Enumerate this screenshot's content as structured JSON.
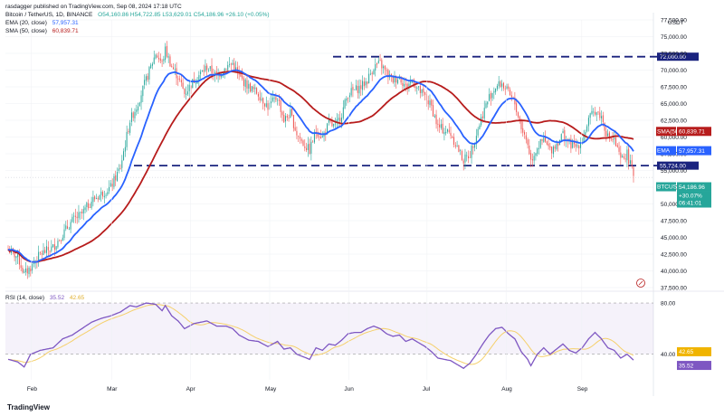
{
  "header": {
    "publisher": "rasdagger published on TradingView.com, Sep 08, 2024 17:18 UTC",
    "symbol": "Bitcoin / TetherUS, 1D, BINANCE",
    "ohlc": "O54,160.86 H54,722.85 L53,629.01 C54,186.96 +26.10 (+0.05%)",
    "ema_label": "EMA (20, close)",
    "ema_value": "57,957.31",
    "sma_label": "SMA (50, close)",
    "sma_value": "60,839.71",
    "currency": "USDT"
  },
  "rsi_header": {
    "label": "RSI (14, close)",
    "value1": "35.52",
    "value2": "42.65"
  },
  "brand": "TradingView",
  "colors": {
    "up": "#26a69a",
    "down": "#ef5350",
    "ema": "#2962ff",
    "sma": "#b71c1c",
    "rsi": "#7e57c2",
    "rsi_ma": "#f5d06b",
    "level_line": "#1a237e"
  },
  "chart_data": {
    "type": "candlestick",
    "y_axis": {
      "min": 37500,
      "max": 77500,
      "ticks": [
        "37,500.00",
        "40,000.00",
        "42,500.00",
        "45,000.00",
        "47,500.00",
        "50,000.00",
        "52,500.00",
        "55,000.00",
        "57,500.00",
        "60,000.00",
        "62,500.00",
        "65,000.00",
        "67,500.00",
        "70,000.00",
        "72,500.00",
        "75,000.00",
        "77,500.00"
      ]
    },
    "x_axis": {
      "month_labels": [
        "Feb",
        "Mar",
        "Apr",
        "May",
        "Jun",
        "Jul",
        "Aug",
        "Sep"
      ]
    },
    "levels": [
      {
        "label": "72,000.00",
        "value": 72000
      },
      {
        "label": "55,724.00",
        "value": 55724
      }
    ],
    "price_tags": [
      {
        "label": "SMA(50)",
        "value_text": "60,839.71",
        "value": 60839.71
      },
      {
        "label": "EMA",
        "value_text": "57,957.31",
        "value": 57957.31
      },
      {
        "label": "BTCUSDT",
        "value_text": "54,186.96",
        "value": 54186.96,
        "extra1": "+30.07%",
        "extra2": "06:41:01"
      }
    ],
    "price_keypoints": [
      [
        0,
        43200
      ],
      [
        6,
        42000
      ],
      [
        10,
        39500
      ],
      [
        14,
        40500
      ],
      [
        20,
        42500
      ],
      [
        28,
        43500
      ],
      [
        34,
        45500
      ],
      [
        40,
        47500
      ],
      [
        46,
        48500
      ],
      [
        52,
        50500
      ],
      [
        58,
        51500
      ],
      [
        64,
        52500
      ],
      [
        70,
        55500
      ],
      [
        76,
        62500
      ],
      [
        80,
        64500
      ],
      [
        86,
        68500
      ],
      [
        92,
        72500
      ],
      [
        96,
        71000
      ],
      [
        98,
        73000
      ],
      [
        102,
        70500
      ],
      [
        106,
        69000
      ],
      [
        110,
        66500
      ],
      [
        116,
        68500
      ],
      [
        124,
        70500
      ],
      [
        130,
        69000
      ],
      [
        136,
        70500
      ],
      [
        140,
        71000
      ],
      [
        144,
        69000
      ],
      [
        150,
        67500
      ],
      [
        156,
        66500
      ],
      [
        162,
        64500
      ],
      [
        168,
        66000
      ],
      [
        172,
        62500
      ],
      [
        176,
        63500
      ],
      [
        180,
        60500
      ],
      [
        184,
        59000
      ],
      [
        188,
        58000
      ],
      [
        192,
        61000
      ],
      [
        196,
        60000
      ],
      [
        200,
        62000
      ],
      [
        204,
        61500
      ],
      [
        208,
        63500
      ],
      [
        212,
        66500
      ],
      [
        216,
        67000
      ],
      [
        220,
        67500
      ],
      [
        224,
        68500
      ],
      [
        228,
        70500
      ],
      [
        232,
        71000
      ],
      [
        236,
        69500
      ],
      [
        240,
        68500
      ],
      [
        244,
        69000
      ],
      [
        248,
        67500
      ],
      [
        252,
        68500
      ],
      [
        256,
        67000
      ],
      [
        260,
        66000
      ],
      [
        264,
        64500
      ],
      [
        268,
        61500
      ],
      [
        272,
        61000
      ],
      [
        276,
        60500
      ],
      [
        280,
        58500
      ],
      [
        284,
        56500
      ],
      [
        288,
        57500
      ],
      [
        292,
        60500
      ],
      [
        296,
        63500
      ],
      [
        300,
        66000
      ],
      [
        304,
        67500
      ],
      [
        308,
        68000
      ],
      [
        312,
        66500
      ],
      [
        316,
        65000
      ],
      [
        320,
        61500
      ],
      [
        324,
        59000
      ],
      [
        326,
        56500
      ],
      [
        330,
        58500
      ],
      [
        334,
        59500
      ],
      [
        338,
        58000
      ],
      [
        342,
        59000
      ],
      [
        346,
        60500
      ],
      [
        350,
        59000
      ],
      [
        354,
        58500
      ],
      [
        358,
        59500
      ],
      [
        362,
        62500
      ],
      [
        366,
        64000
      ],
      [
        370,
        63000
      ],
      [
        374,
        60000
      ],
      [
        378,
        59500
      ],
      [
        382,
        56500
      ],
      [
        386,
        57500
      ],
      [
        390,
        54186
      ]
    ],
    "rsi_scale": {
      "min": 20,
      "max": 85
    },
    "rsi_levels": [
      {
        "label": "80.00",
        "value": 80
      },
      {
        "label": "40.00",
        "value": 40
      }
    ],
    "rsi_keypoints": [
      [
        0,
        36
      ],
      [
        6,
        34
      ],
      [
        10,
        30
      ],
      [
        14,
        40
      ],
      [
        20,
        43
      ],
      [
        28,
        45
      ],
      [
        34,
        52
      ],
      [
        40,
        55
      ],
      [
        46,
        60
      ],
      [
        52,
        65
      ],
      [
        58,
        68
      ],
      [
        64,
        70
      ],
      [
        70,
        73
      ],
      [
        76,
        78
      ],
      [
        80,
        77
      ],
      [
        86,
        80
      ],
      [
        92,
        79
      ],
      [
        96,
        74
      ],
      [
        98,
        78
      ],
      [
        102,
        70
      ],
      [
        106,
        66
      ],
      [
        110,
        60
      ],
      [
        116,
        64
      ],
      [
        124,
        66
      ],
      [
        130,
        62
      ],
      [
        136,
        62
      ],
      [
        140,
        60
      ],
      [
        144,
        55
      ],
      [
        150,
        51
      ],
      [
        156,
        50
      ],
      [
        162,
        46
      ],
      [
        168,
        50
      ],
      [
        172,
        44
      ],
      [
        176,
        45
      ],
      [
        180,
        40
      ],
      [
        184,
        38
      ],
      [
        188,
        36
      ],
      [
        192,
        45
      ],
      [
        196,
        43
      ],
      [
        200,
        48
      ],
      [
        204,
        47
      ],
      [
        208,
        51
      ],
      [
        212,
        56
      ],
      [
        216,
        57
      ],
      [
        220,
        57
      ],
      [
        224,
        60
      ],
      [
        228,
        62
      ],
      [
        232,
        60
      ],
      [
        236,
        56
      ],
      [
        240,
        54
      ],
      [
        244,
        55
      ],
      [
        248,
        50
      ],
      [
        252,
        52
      ],
      [
        256,
        49
      ],
      [
        260,
        46
      ],
      [
        264,
        42
      ],
      [
        268,
        37
      ],
      [
        272,
        36
      ],
      [
        276,
        35
      ],
      [
        280,
        32
      ],
      [
        284,
        29
      ],
      [
        288,
        33
      ],
      [
        292,
        40
      ],
      [
        296,
        48
      ],
      [
        300,
        55
      ],
      [
        304,
        60
      ],
      [
        308,
        61
      ],
      [
        312,
        56
      ],
      [
        316,
        52
      ],
      [
        320,
        42
      ],
      [
        324,
        36
      ],
      [
        326,
        31
      ],
      [
        330,
        40
      ],
      [
        334,
        45
      ],
      [
        338,
        40
      ],
      [
        342,
        44
      ],
      [
        346,
        48
      ],
      [
        350,
        43
      ],
      [
        354,
        41
      ],
      [
        358,
        45
      ],
      [
        362,
        52
      ],
      [
        366,
        57
      ],
      [
        370,
        52
      ],
      [
        374,
        45
      ],
      [
        378,
        43
      ],
      [
        382,
        37
      ],
      [
        386,
        40
      ],
      [
        390,
        35.5
      ]
    ]
  }
}
